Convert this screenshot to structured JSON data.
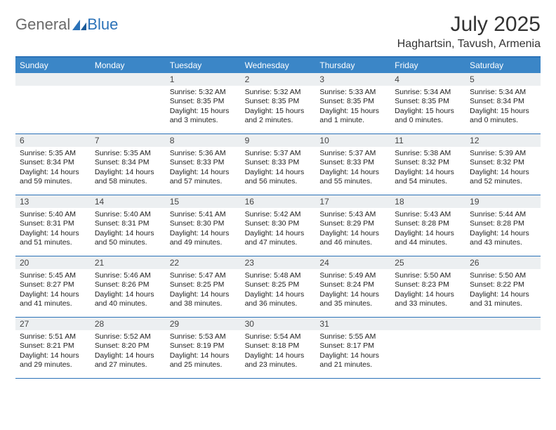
{
  "logo": {
    "text1": "General",
    "text2": "Blue"
  },
  "title": "July 2025",
  "location": "Haghartsin, Tavush, Armenia",
  "colors": {
    "accent": "#3b86c7",
    "border": "#2b72b8",
    "dayHeaderBg": "#eceff1",
    "logoGray": "#6a6a6a",
    "logoBlue": "#2b72b8"
  },
  "dow": [
    "Sunday",
    "Monday",
    "Tuesday",
    "Wednesday",
    "Thursday",
    "Friday",
    "Saturday"
  ],
  "weeks": [
    [
      {
        "n": "",
        "sr": "",
        "ss": "",
        "dl": ""
      },
      {
        "n": "",
        "sr": "",
        "ss": "",
        "dl": ""
      },
      {
        "n": "1",
        "sr": "Sunrise: 5:32 AM",
        "ss": "Sunset: 8:35 PM",
        "dl": "Daylight: 15 hours and 3 minutes."
      },
      {
        "n": "2",
        "sr": "Sunrise: 5:32 AM",
        "ss": "Sunset: 8:35 PM",
        "dl": "Daylight: 15 hours and 2 minutes."
      },
      {
        "n": "3",
        "sr": "Sunrise: 5:33 AM",
        "ss": "Sunset: 8:35 PM",
        "dl": "Daylight: 15 hours and 1 minute."
      },
      {
        "n": "4",
        "sr": "Sunrise: 5:34 AM",
        "ss": "Sunset: 8:35 PM",
        "dl": "Daylight: 15 hours and 0 minutes."
      },
      {
        "n": "5",
        "sr": "Sunrise: 5:34 AM",
        "ss": "Sunset: 8:34 PM",
        "dl": "Daylight: 15 hours and 0 minutes."
      }
    ],
    [
      {
        "n": "6",
        "sr": "Sunrise: 5:35 AM",
        "ss": "Sunset: 8:34 PM",
        "dl": "Daylight: 14 hours and 59 minutes."
      },
      {
        "n": "7",
        "sr": "Sunrise: 5:35 AM",
        "ss": "Sunset: 8:34 PM",
        "dl": "Daylight: 14 hours and 58 minutes."
      },
      {
        "n": "8",
        "sr": "Sunrise: 5:36 AM",
        "ss": "Sunset: 8:33 PM",
        "dl": "Daylight: 14 hours and 57 minutes."
      },
      {
        "n": "9",
        "sr": "Sunrise: 5:37 AM",
        "ss": "Sunset: 8:33 PM",
        "dl": "Daylight: 14 hours and 56 minutes."
      },
      {
        "n": "10",
        "sr": "Sunrise: 5:37 AM",
        "ss": "Sunset: 8:33 PM",
        "dl": "Daylight: 14 hours and 55 minutes."
      },
      {
        "n": "11",
        "sr": "Sunrise: 5:38 AM",
        "ss": "Sunset: 8:32 PM",
        "dl": "Daylight: 14 hours and 54 minutes."
      },
      {
        "n": "12",
        "sr": "Sunrise: 5:39 AM",
        "ss": "Sunset: 8:32 PM",
        "dl": "Daylight: 14 hours and 52 minutes."
      }
    ],
    [
      {
        "n": "13",
        "sr": "Sunrise: 5:40 AM",
        "ss": "Sunset: 8:31 PM",
        "dl": "Daylight: 14 hours and 51 minutes."
      },
      {
        "n": "14",
        "sr": "Sunrise: 5:40 AM",
        "ss": "Sunset: 8:31 PM",
        "dl": "Daylight: 14 hours and 50 minutes."
      },
      {
        "n": "15",
        "sr": "Sunrise: 5:41 AM",
        "ss": "Sunset: 8:30 PM",
        "dl": "Daylight: 14 hours and 49 minutes."
      },
      {
        "n": "16",
        "sr": "Sunrise: 5:42 AM",
        "ss": "Sunset: 8:30 PM",
        "dl": "Daylight: 14 hours and 47 minutes."
      },
      {
        "n": "17",
        "sr": "Sunrise: 5:43 AM",
        "ss": "Sunset: 8:29 PM",
        "dl": "Daylight: 14 hours and 46 minutes."
      },
      {
        "n": "18",
        "sr": "Sunrise: 5:43 AM",
        "ss": "Sunset: 8:28 PM",
        "dl": "Daylight: 14 hours and 44 minutes."
      },
      {
        "n": "19",
        "sr": "Sunrise: 5:44 AM",
        "ss": "Sunset: 8:28 PM",
        "dl": "Daylight: 14 hours and 43 minutes."
      }
    ],
    [
      {
        "n": "20",
        "sr": "Sunrise: 5:45 AM",
        "ss": "Sunset: 8:27 PM",
        "dl": "Daylight: 14 hours and 41 minutes."
      },
      {
        "n": "21",
        "sr": "Sunrise: 5:46 AM",
        "ss": "Sunset: 8:26 PM",
        "dl": "Daylight: 14 hours and 40 minutes."
      },
      {
        "n": "22",
        "sr": "Sunrise: 5:47 AM",
        "ss": "Sunset: 8:25 PM",
        "dl": "Daylight: 14 hours and 38 minutes."
      },
      {
        "n": "23",
        "sr": "Sunrise: 5:48 AM",
        "ss": "Sunset: 8:25 PM",
        "dl": "Daylight: 14 hours and 36 minutes."
      },
      {
        "n": "24",
        "sr": "Sunrise: 5:49 AM",
        "ss": "Sunset: 8:24 PM",
        "dl": "Daylight: 14 hours and 35 minutes."
      },
      {
        "n": "25",
        "sr": "Sunrise: 5:50 AM",
        "ss": "Sunset: 8:23 PM",
        "dl": "Daylight: 14 hours and 33 minutes."
      },
      {
        "n": "26",
        "sr": "Sunrise: 5:50 AM",
        "ss": "Sunset: 8:22 PM",
        "dl": "Daylight: 14 hours and 31 minutes."
      }
    ],
    [
      {
        "n": "27",
        "sr": "Sunrise: 5:51 AM",
        "ss": "Sunset: 8:21 PM",
        "dl": "Daylight: 14 hours and 29 minutes."
      },
      {
        "n": "28",
        "sr": "Sunrise: 5:52 AM",
        "ss": "Sunset: 8:20 PM",
        "dl": "Daylight: 14 hours and 27 minutes."
      },
      {
        "n": "29",
        "sr": "Sunrise: 5:53 AM",
        "ss": "Sunset: 8:19 PM",
        "dl": "Daylight: 14 hours and 25 minutes."
      },
      {
        "n": "30",
        "sr": "Sunrise: 5:54 AM",
        "ss": "Sunset: 8:18 PM",
        "dl": "Daylight: 14 hours and 23 minutes."
      },
      {
        "n": "31",
        "sr": "Sunrise: 5:55 AM",
        "ss": "Sunset: 8:17 PM",
        "dl": "Daylight: 14 hours and 21 minutes."
      },
      {
        "n": "",
        "sr": "",
        "ss": "",
        "dl": ""
      },
      {
        "n": "",
        "sr": "",
        "ss": "",
        "dl": ""
      }
    ]
  ]
}
